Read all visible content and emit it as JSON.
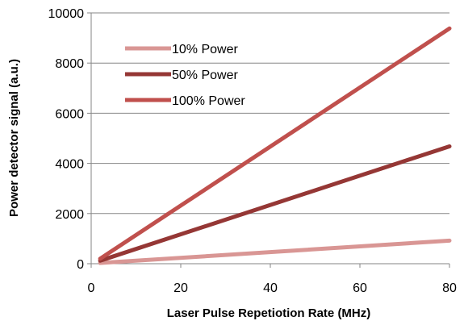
{
  "chart_data": {
    "type": "line",
    "title": "",
    "xlabel": "Laser Pulse Repetiotion Rate (MHz)",
    "ylabel": "Power detector signal (a.u.)",
    "xlim": [
      0,
      80
    ],
    "ylim": [
      0,
      10000
    ],
    "x_ticks": [
      "0",
      "20",
      "40",
      "60",
      "80"
    ],
    "y_ticks": [
      "0",
      "2000",
      "4000",
      "6000",
      "8000",
      "10000"
    ],
    "grid": "horizontal",
    "legend_position": "top-left",
    "series": [
      {
        "name": "10% Power",
        "color": "#d99694",
        "x": [
          2,
          80
        ],
        "y": [
          30,
          920
        ]
      },
      {
        "name": "50% Power",
        "color": "#953735",
        "x": [
          2,
          80
        ],
        "y": [
          120,
          4680
        ]
      },
      {
        "name": "100% Power",
        "color": "#c0504d",
        "x": [
          2,
          80
        ],
        "y": [
          200,
          9380
        ]
      }
    ]
  }
}
